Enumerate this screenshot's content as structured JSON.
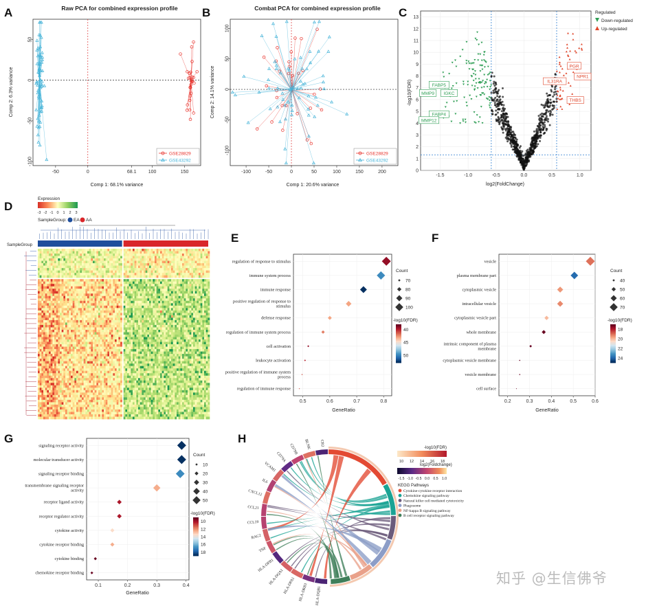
{
  "panel_labels": [
    "A",
    "B",
    "C",
    "D",
    "E",
    "F",
    "G",
    "H"
  ],
  "watermark": "知乎 @生信佛爷",
  "chart_data": [
    {
      "id": "A",
      "type": "scatter",
      "title": "Raw PCA for combined expression profile",
      "xlabel": "Comp 1: 68.1% variance",
      "ylabel": "Comp 2: 6.3% variance",
      "xlim": [
        -85,
        175
      ],
      "ylim": [
        -105,
        75
      ],
      "xticks": [
        "-50",
        "0",
        "68.1",
        "100",
        "150"
      ],
      "xtick_vals": [
        -50,
        0,
        68.1,
        100,
        150
      ],
      "yticks": [
        "-100",
        "-50",
        "0",
        "50"
      ],
      "ytick_vals": [
        -100,
        -50,
        0,
        50
      ],
      "series": [
        {
          "name": "GSE28829",
          "color": "#e8312a",
          "centroid": [
            160,
            0
          ],
          "n": 29,
          "sx": 4,
          "sy": 22
        },
        {
          "name": "GSE43292",
          "color": "#45b3d8",
          "centroid": [
            -75,
            0
          ],
          "n": 64,
          "sx": 3,
          "sy": 40
        }
      ]
    },
    {
      "id": "B",
      "type": "scatter",
      "title": "Combat PCA for combined expression profile",
      "xlabel": "Comp 1: 20.6% variance",
      "ylabel": "Comp 2: 14.1% variance",
      "xlim": [
        -135,
        235
      ],
      "ylim": [
        -125,
        115
      ],
      "xticks": [
        "-100",
        "-50",
        "0",
        "50",
        "100",
        "150",
        "200"
      ],
      "xtick_vals": [
        -100,
        -50,
        0,
        50,
        100,
        150,
        200
      ],
      "yticks": [
        "-100",
        "-50",
        "0",
        "50",
        "100"
      ],
      "ytick_vals": [
        -100,
        -50,
        0,
        50,
        100
      ],
      "series": [
        {
          "name": "GSE28829",
          "color": "#e8312a",
          "centroid": [
            2,
            -2
          ],
          "n": 29,
          "sx": 30,
          "sy": 45
        },
        {
          "name": "GSE43292",
          "color": "#45b3d8",
          "centroid": [
            0,
            0
          ],
          "n": 64,
          "sx": 55,
          "sy": 50
        }
      ]
    },
    {
      "id": "C",
      "type": "scatter",
      "xlabel": "log2(FoldChange)",
      "ylabel": "-log10(FDR)",
      "xlim": [
        -1.85,
        1.2
      ],
      "ylim": [
        0,
        13.5
      ],
      "xticks": [
        "-1.5",
        "-1.0",
        "-0.5",
        "0.0",
        "0.5",
        "1.0"
      ],
      "xtick_vals": [
        -1.5,
        -1,
        -0.5,
        0,
        0.5,
        1
      ],
      "yticks": [
        "0",
        "1",
        "2",
        "3",
        "4",
        "5",
        "6",
        "7",
        "8",
        "9",
        "10",
        "11",
        "12",
        "13"
      ],
      "ytick_vals": [
        0,
        1,
        2,
        3,
        4,
        5,
        6,
        7,
        8,
        9,
        10,
        11,
        12,
        13
      ],
      "thresholds": {
        "fc": 0.585,
        "fdr": 1.3
      },
      "legend_title": "Regulated",
      "legend": [
        {
          "name": "Down-regulated",
          "color": "#2e9e54"
        },
        {
          "name": "Up-regulated",
          "color": "#e0472c"
        }
      ],
      "labels_down": [
        {
          "text": "FABP5",
          "x": -1.52,
          "y": 7.2
        },
        {
          "text": "MMP9",
          "x": -1.72,
          "y": 6.5
        },
        {
          "text": "IGKC",
          "x": -1.34,
          "y": 6.5
        },
        {
          "text": "FABP4",
          "x": -1.52,
          "y": 4.7
        },
        {
          "text": "MMP12",
          "x": -1.7,
          "y": 4.2
        }
      ],
      "labels_up": [
        {
          "text": "PGR",
          "x": 0.9,
          "y": 8.8
        },
        {
          "text": "NPR1",
          "x": 1.05,
          "y": 7.9
        },
        {
          "text": "IL31RA",
          "x": 0.55,
          "y": 7.5
        },
        {
          "text": "THBS",
          "x": 0.92,
          "y": 5.9
        }
      ]
    },
    {
      "id": "E",
      "type": "scatter",
      "subtype": "dotplot",
      "xlabel": "GeneRatio",
      "xlim": [
        0.465,
        0.83
      ],
      "xticks": [
        "0.5",
        "0.6",
        "0.7",
        "0.8"
      ],
      "xtick_vals": [
        0.5,
        0.6,
        0.7,
        0.8
      ],
      "size_title": "Count",
      "size_levels": [
        "70",
        "80",
        "90",
        "100"
      ],
      "color_title": "-log10(FDR)",
      "color_ticks": [
        "40",
        "45",
        "50"
      ],
      "color_range": [
        38,
        53
      ],
      "terms": [
        {
          "label": [
            "regulation of response to stimulus"
          ],
          "x": 0.81,
          "count": 100,
          "fdr": 39
        },
        {
          "label": [
            "immune system process"
          ],
          "x": 0.79,
          "count": 97,
          "fdr": 50
        },
        {
          "label": [
            "immune response"
          ],
          "x": 0.725,
          "count": 90,
          "fdr": 53
        },
        {
          "label": [
            "positive regulation of response to",
            "stimulus"
          ],
          "x": 0.67,
          "count": 84,
          "fdr": 43
        },
        {
          "label": [
            "defense response"
          ],
          "x": 0.6,
          "count": 76,
          "fdr": 43
        },
        {
          "label": [
            "regulation of immune system process"
          ],
          "x": 0.575,
          "count": 73,
          "fdr": 42
        },
        {
          "label": [
            "cell activation"
          ],
          "x": 0.52,
          "count": 66,
          "fdr": 39
        },
        {
          "label": [
            "leukocyte activation"
          ],
          "x": 0.508,
          "count": 65,
          "fdr": 40
        },
        {
          "label": [
            "positive regulation of immune system",
            "process"
          ],
          "x": 0.497,
          "count": 63,
          "fdr": 41
        },
        {
          "label": [
            "regulation of immune response"
          ],
          "x": 0.487,
          "count": 62,
          "fdr": 41
        }
      ]
    },
    {
      "id": "F",
      "type": "scatter",
      "subtype": "dotplot",
      "xlabel": "GeneRatio",
      "xlim": [
        0.16,
        0.6
      ],
      "xticks": [
        "0.2",
        "0.3",
        "0.4",
        "0.5",
        "0.6"
      ],
      "xtick_vals": [
        0.2,
        0.3,
        0.4,
        0.5,
        0.6
      ],
      "size_title": "Count",
      "size_levels": [
        "40",
        "50",
        "60",
        "70"
      ],
      "color_title": "-log10(FDR)",
      "color_ticks": [
        "18",
        "20",
        "22",
        "24"
      ],
      "color_range": [
        17,
        25
      ],
      "terms": [
        {
          "label": [
            "vesicle"
          ],
          "x": 0.578,
          "count": 70,
          "fdr": 19
        },
        {
          "label": [
            "plasma membrane part"
          ],
          "x": 0.505,
          "count": 63,
          "fdr": 24
        },
        {
          "label": [
            "cytoplasmic vesicle"
          ],
          "x": 0.44,
          "count": 56,
          "fdr": 19.5
        },
        {
          "label": [
            "intracellular vesicle"
          ],
          "x": 0.44,
          "count": 56,
          "fdr": 19.3
        },
        {
          "label": [
            "cytoplasmic vesicle part"
          ],
          "x": 0.378,
          "count": 48,
          "fdr": 20
        },
        {
          "label": [
            "whole membrane"
          ],
          "x": 0.365,
          "count": 46,
          "fdr": 17
        },
        {
          "label": [
            "intrinsic component of plasma",
            "membrane"
          ],
          "x": 0.305,
          "count": 39,
          "fdr": 17
        },
        {
          "label": [
            "cytoplasmic vesicle membrane"
          ],
          "x": 0.255,
          "count": 33,
          "fdr": 17
        },
        {
          "label": [
            "vesicle membrane"
          ],
          "x": 0.255,
          "count": 33,
          "fdr": 17
        },
        {
          "label": [
            "cell surface"
          ],
          "x": 0.24,
          "count": 31,
          "fdr": 17
        }
      ]
    },
    {
      "id": "G",
      "type": "scatter",
      "subtype": "dotplot",
      "xlabel": "GeneRatio",
      "xlim": [
        0.06,
        0.41
      ],
      "xticks": [
        "0.1",
        "0.2",
        "0.3",
        "0.4"
      ],
      "xtick_vals": [
        0.1,
        0.2,
        0.3,
        0.4
      ],
      "size_title": "Count",
      "size_levels": [
        "10",
        "20",
        "30",
        "40",
        "50"
      ],
      "color_title": "-log10(FDR)",
      "color_ticks": [
        "10",
        "12",
        "14",
        "16",
        "18"
      ],
      "color_range": [
        9,
        19
      ],
      "terms": [
        {
          "label": [
            "signaling receptor activity"
          ],
          "x": 0.385,
          "count": 50,
          "fdr": 19
        },
        {
          "label": [
            "molecular transducer activity"
          ],
          "x": 0.385,
          "count": 50,
          "fdr": 19
        },
        {
          "label": [
            "signaling receptor binding"
          ],
          "x": 0.38,
          "count": 49,
          "fdr": 17
        },
        {
          "label": [
            "transmembrane signaling receptor",
            "activity"
          ],
          "x": 0.3,
          "count": 39,
          "fdr": 12.5
        },
        {
          "label": [
            "receptor ligand activity"
          ],
          "x": 0.172,
          "count": 22,
          "fdr": 10
        },
        {
          "label": [
            "receptor regulator activity"
          ],
          "x": 0.172,
          "count": 22,
          "fdr": 10
        },
        {
          "label": [
            "cytokine activity"
          ],
          "x": 0.148,
          "count": 19,
          "fdr": 13.5
        },
        {
          "label": [
            "cytokine receptor binding"
          ],
          "x": 0.148,
          "count": 19,
          "fdr": 12.5
        },
        {
          "label": [
            "cytokine binding"
          ],
          "x": 0.09,
          "count": 12,
          "fdr": 9
        },
        {
          "label": [
            "chemokine receptor binding"
          ],
          "x": 0.078,
          "count": 10,
          "fdr": 9
        }
      ]
    },
    {
      "id": "D",
      "type": "heatmap",
      "legend_title": "Expression",
      "scale_ticks": [
        "-3",
        "-2",
        "-1",
        "0",
        "1",
        "2",
        "3"
      ],
      "group_label": "SampleGroup:",
      "group_names": [
        "EA",
        "AA"
      ],
      "group_colors": [
        "#1f4e9c",
        "#d9262a"
      ],
      "row_label": "SampleGroup",
      "n_rows": 70,
      "n_cols": 93,
      "split_col": 46,
      "split_row": 12
    },
    {
      "id": "H",
      "type": "chord",
      "fdr_title": "-log10(FDR)",
      "fdr_ticks": [
        "10",
        "12",
        "14",
        "16",
        "18"
      ],
      "fc_title": "log2(Foldchange)",
      "fc_ticks": [
        "-1.5",
        "-1.0",
        "-0.5",
        "0.0",
        "0.5",
        "1.0"
      ],
      "pathway_title": "KEGG Pathways",
      "pathways": [
        {
          "name": "Cytokine-cytokine receptor interaction",
          "color": "#e34a33"
        },
        {
          "name": "Chemokine signaling pathway",
          "color": "#1aa394"
        },
        {
          "name": "Natural killer cell mediated cytotoxicity",
          "color": "#6b5b7b"
        },
        {
          "name": "Phagosome",
          "color": "#8c9dc7"
        },
        {
          "name": "NF-kappa B signaling pathway",
          "color": "#e9a18a"
        },
        {
          "name": "B cell receptor signaling pathway",
          "color": "#3f7f5a"
        }
      ],
      "genes": [
        "HLA-DQB1",
        "HLA-DRB1",
        "HLA-DPA1",
        "HLA-DQA1",
        "HLA-DPB1",
        "TNF",
        "RAC2",
        "CCL19",
        "CCL21",
        "CXCL12",
        "IL6",
        "VCAM1",
        "CD79A",
        "CD79B",
        "BLNK",
        "CR2"
      ]
    }
  ]
}
